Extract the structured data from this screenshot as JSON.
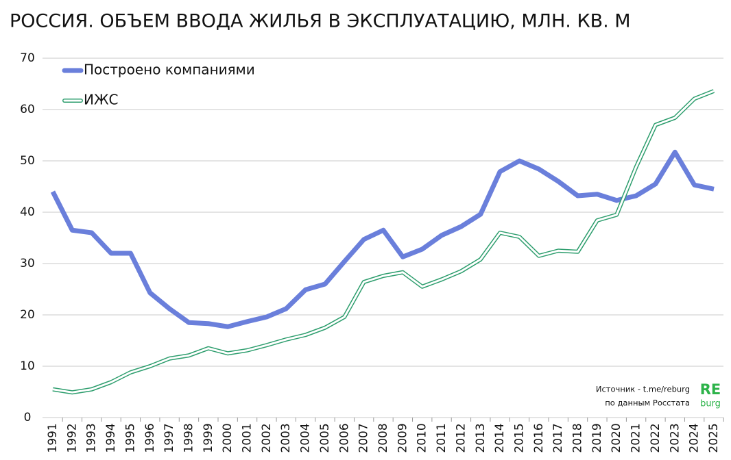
{
  "chart_data": {
    "type": "line",
    "title": "РОССИЯ. ОБЪЕМ ВВОДА  ЖИЛЬЯ В ЭКСПЛУАТАЦИЮ, МЛН. КВ. М",
    "x": [
      "1991",
      "1992",
      "1993",
      "1994",
      "1995",
      "1996",
      "1997",
      "1998",
      "1999",
      "2000",
      "2001",
      "2002",
      "2003",
      "2004",
      "2005",
      "2006",
      "2007",
      "2008",
      "2009",
      "2010",
      "2011",
      "2012",
      "2013",
      "2014",
      "2015",
      "2016",
      "2017",
      "2018",
      "2019",
      "2020",
      "2021",
      "2022",
      "2023",
      "2024",
      "2025"
    ],
    "series": [
      {
        "name": "Построено компаниями",
        "color": "#6a7fdb",
        "style": "thick",
        "values": [
          44,
          36.5,
          36,
          32,
          32,
          24.3,
          21.2,
          18.5,
          18.3,
          17.7,
          18.7,
          19.6,
          21.2,
          24.9,
          26,
          30.4,
          34.7,
          36.5,
          31.3,
          32.8,
          35.5,
          37.2,
          39.6,
          47.9,
          50,
          48.4,
          46,
          43.2,
          43.5,
          42.3,
          43.2,
          45.5,
          51.7,
          45.3,
          44.5
        ]
      },
      {
        "name": "ИЖС",
        "color": "#2e9e6e",
        "style": "double",
        "values": [
          5.5,
          4.9,
          5.5,
          6.9,
          8.8,
          10,
          11.5,
          12.1,
          13.5,
          12.5,
          13.1,
          14.1,
          15.2,
          16.1,
          17.5,
          19.6,
          26.4,
          27.6,
          28.3,
          25.5,
          26.9,
          28.5,
          30.8,
          36,
          35.2,
          31.5,
          32.5,
          32.3,
          38.4,
          39.5,
          48.8,
          57,
          58.4,
          62.1,
          63.6
        ]
      }
    ],
    "ylim": [
      0,
      70
    ],
    "yticks": [
      0,
      10,
      20,
      30,
      40,
      50,
      60,
      70
    ],
    "grid": true,
    "source": "Источник - t.me/reburg",
    "source_note": "по данным Росстата",
    "logo": {
      "top": "RE",
      "bottom": "burg",
      "color": "#2db34a"
    }
  }
}
